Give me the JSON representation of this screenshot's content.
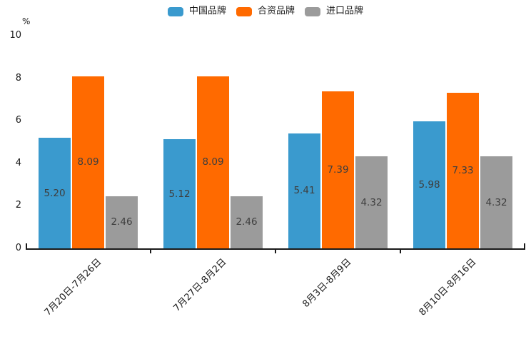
{
  "chart_data": {
    "type": "bar",
    "title": "",
    "unit_label": "%",
    "categories": [
      "7月20日-7月26日",
      "7月27日-8月2日",
      "8月3日-8月9日",
      "8月10日-8月16日"
    ],
    "series": [
      {
        "name": "中国品牌",
        "color": "#3A9ACE",
        "values": [
          5.2,
          5.12,
          5.41,
          5.98
        ],
        "labels": [
          "5.20",
          "5.12",
          "5.41",
          "5.98"
        ]
      },
      {
        "name": "合资品牌",
        "color": "#FF6A00",
        "values": [
          8.09,
          8.09,
          7.39,
          7.33
        ],
        "labels": [
          "8.09",
          "8.09",
          "7.39",
          "7.33"
        ]
      },
      {
        "name": "进口品牌",
        "color": "#9B9B9B",
        "values": [
          2.46,
          2.46,
          4.32,
          4.32
        ],
        "labels": [
          "2.46",
          "2.46",
          "4.32",
          "4.32"
        ]
      }
    ],
    "ylim": [
      0,
      10
    ],
    "yticks": [
      "0",
      "2",
      "4",
      "6",
      "8",
      "10"
    ],
    "legend_position": "top-center",
    "grid": false,
    "value_label_placement": "inside-center",
    "x_label_rotation_deg": 45,
    "axis_color": "#1A1A1A",
    "value_label_color": "#3E3E3E",
    "background_color": "#FFFFFF"
  }
}
